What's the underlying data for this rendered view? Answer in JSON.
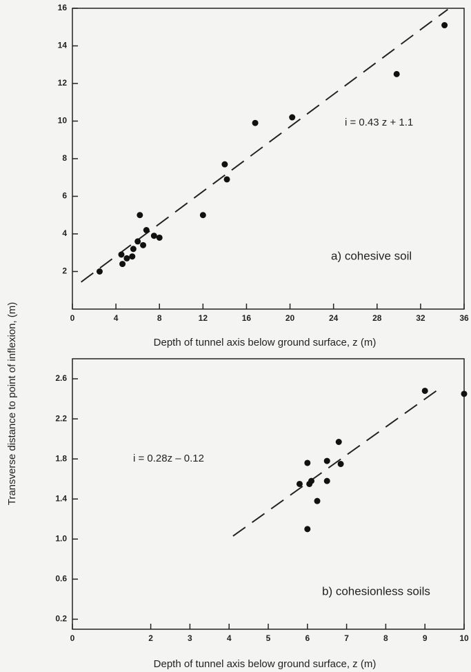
{
  "chart_data": [
    {
      "type": "scatter",
      "ylabel": "Transverse distance to point of inflexion, (m)",
      "xlabel": "Depth of tunnel axis below ground surface, z (m)",
      "equation": "i = 0.43 z + 1.1",
      "caption": "a) cohesive soil",
      "color": "#111111",
      "x": [
        2.5,
        4.5,
        4.6,
        5.0,
        5.5,
        5.6,
        6.0,
        6.2,
        6.5,
        6.8,
        7.5,
        8.0,
        12.0,
        14.0,
        14.2,
        16.8,
        20.2,
        29.8,
        34.2
      ],
      "y": [
        2.0,
        2.9,
        2.4,
        2.7,
        2.8,
        3.2,
        3.6,
        5.0,
        3.4,
        4.2,
        3.9,
        3.8,
        5.0,
        7.7,
        6.9,
        9.9,
        10.2,
        12.5,
        15.1
      ],
      "trend": {
        "x": [
          0.8,
          34.5
        ],
        "y": [
          1.44,
          15.94
        ]
      },
      "xlim": [
        0,
        36
      ],
      "ylim": [
        0,
        16
      ],
      "xticks": [
        0,
        4,
        8,
        12,
        16,
        20,
        24,
        28,
        32,
        36
      ],
      "yticks": [
        2,
        4,
        6,
        8,
        10,
        12,
        14,
        16
      ]
    },
    {
      "type": "scatter",
      "xlabel": "Depth of tunnel axis below ground surface, z (m)",
      "equation": "i = 0.28z – 0.12",
      "caption": "b) cohesionless soils",
      "color": "#111111",
      "x": [
        5.8,
        6.0,
        6.0,
        6.05,
        6.1,
        6.25,
        6.5,
        6.5,
        6.8,
        6.85,
        9.0,
        10.0
      ],
      "y": [
        1.55,
        1.76,
        1.1,
        1.55,
        1.58,
        1.38,
        1.78,
        1.58,
        1.97,
        1.75,
        2.48,
        2.45
      ],
      "trend": {
        "x": [
          4.1,
          9.4
        ],
        "y": [
          1.03,
          2.51
        ]
      },
      "xlim": [
        0,
        10
      ],
      "ylim": [
        0.1,
        2.8
      ],
      "xticks": [
        0,
        2,
        3,
        4,
        5,
        6,
        7,
        8,
        9,
        10
      ],
      "yticks": [
        0.2,
        0.6,
        {
          "value": 1,
          "label": "1.0"
        },
        1.4,
        1.8,
        2.2,
        2.6
      ]
    }
  ]
}
